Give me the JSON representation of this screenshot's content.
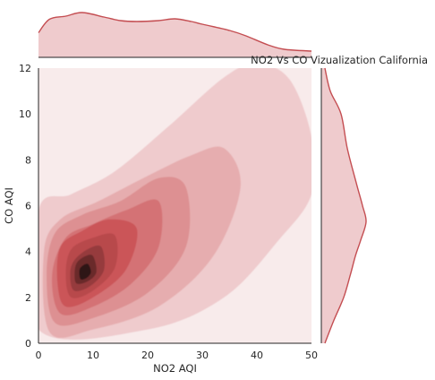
{
  "chart_data": {
    "type": "kde",
    "title": "NO2 Vs CO Vizualization California",
    "xlabel": "NO2 AQI",
    "ylabel": "CO AQI",
    "xlim": [
      0,
      50
    ],
    "ylim": [
      0,
      12
    ],
    "x_ticks": [
      "0",
      "10",
      "20",
      "30",
      "40",
      "50"
    ],
    "y_ticks": [
      "0",
      "2",
      "4",
      "6",
      "8",
      "10",
      "12"
    ],
    "grid": false,
    "colors": {
      "line": "#c44e52",
      "levels": [
        "#f8ebeb",
        "#efcbcd",
        "#e6adaf",
        "#dd9092",
        "#d47275",
        "#cb5558",
        "#b8494c",
        "#963b3e",
        "#6a2a2c",
        "#2d1213"
      ]
    },
    "density_peak": {
      "x": 8,
      "y": 3
    },
    "marginal_x": {
      "x": [
        0,
        2,
        5,
        8,
        12,
        15,
        18,
        22,
        25,
        28,
        30,
        35,
        38,
        42,
        45,
        50
      ],
      "density": [
        0.55,
        0.85,
        0.92,
        1.0,
        0.9,
        0.82,
        0.8,
        0.82,
        0.86,
        0.8,
        0.74,
        0.6,
        0.48,
        0.28,
        0.18,
        0.14
      ]
    },
    "marginal_y": {
      "y": [
        0,
        1,
        2,
        3,
        3.8,
        4.5,
        5.3,
        6,
        7,
        8.5,
        10,
        11,
        12
      ],
      "density": [
        0.08,
        0.28,
        0.5,
        0.65,
        0.76,
        0.88,
        1.0,
        0.92,
        0.78,
        0.58,
        0.44,
        0.2,
        0.08
      ]
    }
  }
}
